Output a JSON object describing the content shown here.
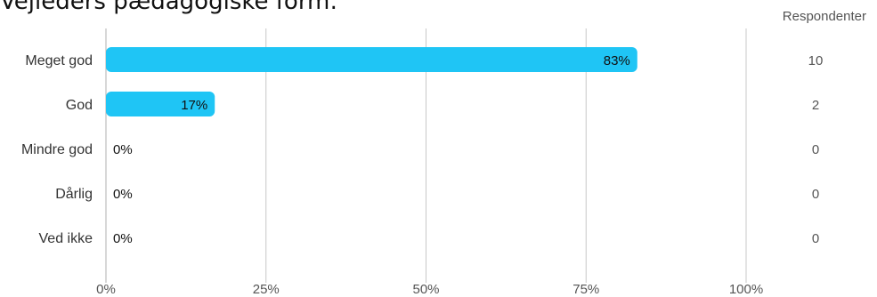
{
  "title": "Vejleders pædagogiske form:",
  "respondents_header": "Respondenter",
  "colors": {
    "bar": "#1fc5f5",
    "grid": "#c8c8c8",
    "axis": "#b0b0b0"
  },
  "chart_data": {
    "type": "bar",
    "orientation": "horizontal",
    "title": "Vejleders pædagogiske form:",
    "categories": [
      "Meget god",
      "God",
      "Mindre god",
      "Dårlig",
      "Ved ikke"
    ],
    "values": [
      83,
      17,
      0,
      0,
      0
    ],
    "value_labels": [
      "83%",
      "17%",
      "0%",
      "0%",
      "0%"
    ],
    "respondents": [
      10,
      2,
      0,
      0,
      0
    ],
    "x_ticks": [
      "0%",
      "25%",
      "50%",
      "75%",
      "100%"
    ],
    "xlim": [
      0,
      100
    ],
    "grid": true
  }
}
